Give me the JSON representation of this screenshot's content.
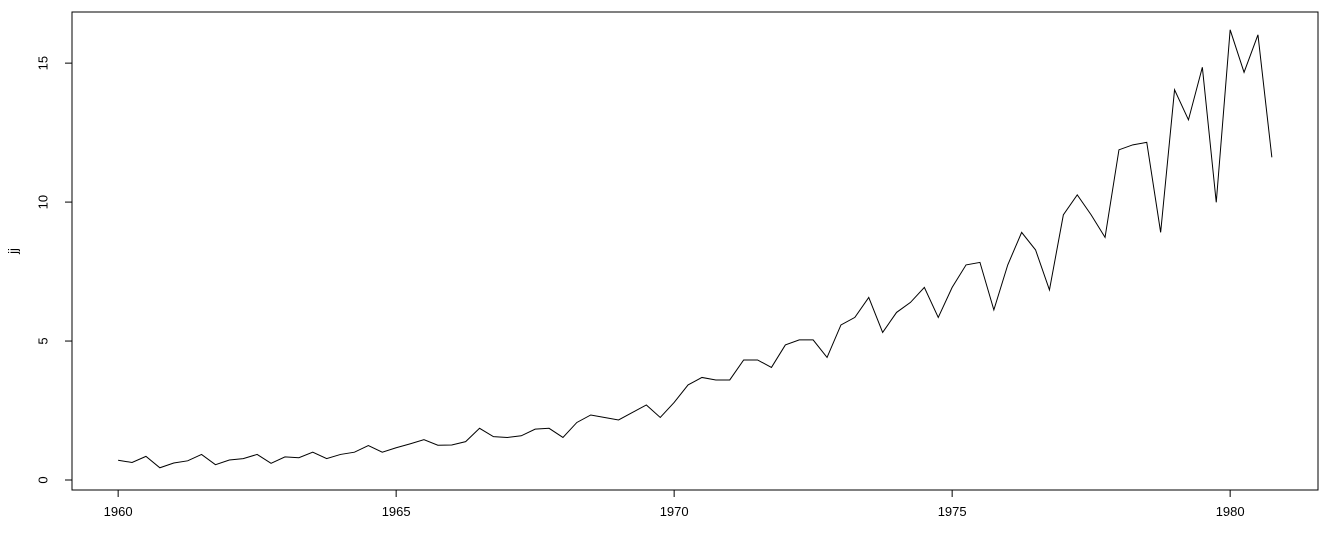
{
  "chart_data": {
    "type": "line",
    "ylabel": "jj",
    "x": [
      1960,
      1960.25,
      1960.5,
      1960.75,
      1961,
      1961.25,
      1961.5,
      1961.75,
      1962,
      1962.25,
      1962.5,
      1962.75,
      1963,
      1963.25,
      1963.5,
      1963.75,
      1964,
      1964.25,
      1964.5,
      1964.75,
      1965,
      1965.25,
      1965.5,
      1965.75,
      1966,
      1966.25,
      1966.5,
      1966.75,
      1967,
      1967.25,
      1967.5,
      1967.75,
      1968,
      1968.25,
      1968.5,
      1968.75,
      1969,
      1969.25,
      1969.5,
      1969.75,
      1970,
      1970.25,
      1970.5,
      1970.75,
      1971,
      1971.25,
      1971.5,
      1971.75,
      1972,
      1972.25,
      1972.5,
      1972.75,
      1973,
      1973.25,
      1973.5,
      1973.75,
      1974,
      1974.25,
      1974.5,
      1974.75,
      1975,
      1975.25,
      1975.5,
      1975.75,
      1976,
      1976.25,
      1976.5,
      1976.75,
      1977,
      1977.25,
      1977.5,
      1977.75,
      1978,
      1978.25,
      1978.5,
      1978.75,
      1979,
      1979.25,
      1979.5,
      1979.75,
      1980,
      1980.25,
      1980.5,
      1980.75
    ],
    "series": [
      {
        "color": "#000000",
        "values": [
          0.71,
          0.63,
          0.85,
          0.44,
          0.61,
          0.69,
          0.92,
          0.55,
          0.72,
          0.77,
          0.92,
          0.6,
          0.83,
          0.8,
          1.0,
          0.77,
          0.92,
          1.0,
          1.24,
          1.0,
          1.16,
          1.3,
          1.45,
          1.25,
          1.26,
          1.38,
          1.86,
          1.56,
          1.53,
          1.59,
          1.83,
          1.86,
          1.53,
          2.07,
          2.34,
          2.25,
          2.16,
          2.43,
          2.7,
          2.25,
          2.79,
          3.42,
          3.69,
          3.6,
          3.6,
          4.32,
          4.32,
          4.05,
          4.86,
          5.04,
          5.04,
          4.41,
          5.58,
          5.85,
          6.57,
          5.31,
          6.03,
          6.39,
          6.93,
          5.85,
          6.93,
          7.74,
          7.83,
          6.12,
          7.74,
          8.91,
          8.28,
          6.84,
          9.54,
          10.26,
          9.54,
          8.73,
          11.88,
          12.06,
          12.15,
          8.91,
          14.04,
          12.96,
          14.85,
          9.99,
          16.2,
          14.67,
          16.02,
          11.61
        ]
      }
    ],
    "xlim": [
      1959.17,
      1981.58
    ],
    "xticks": [
      1960,
      1965,
      1970,
      1975,
      1980
    ],
    "ylim": [
      -0.36,
      16.84
    ],
    "yticks": [
      0,
      5,
      10,
      15
    ]
  }
}
